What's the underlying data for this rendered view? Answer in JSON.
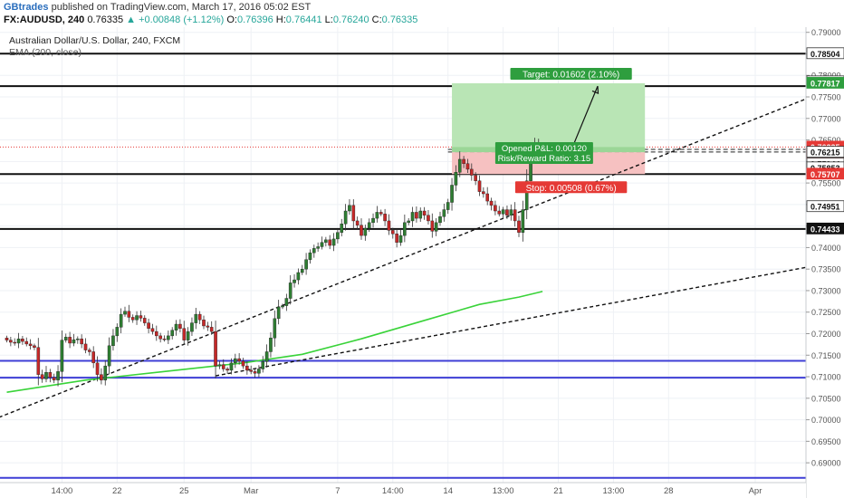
{
  "header": {
    "author": "GBtrades",
    "published_text": "published on TradingView.com, March 17, 2016 05:02 EST",
    "symbol": "FX:AUDUSD, 240",
    "last": "0.76335",
    "change": "+0.00848 (+1.12%)",
    "open_label": "O:",
    "open": "0.76396",
    "high_label": "H:",
    "high": "0.76441",
    "low_label": "L:",
    "low": "0.76240",
    "close_label": "C:",
    "close": "0.76335"
  },
  "legend": {
    "title": "Australian Dollar/U.S. Dollar, 240, FXCM",
    "indicator": "EMA (200, close)"
  },
  "colors": {
    "up_candle": "#2e7d32",
    "down_candle": "#c62828",
    "ema": "#39d339",
    "support_blue": "#3f3fd6",
    "target_fill": "#b9e5b5",
    "stop_fill": "#f6c1c1",
    "target_badge": "#2e9e3e",
    "stop_badge": "#e53935",
    "price_line": "#e53935"
  },
  "chart_data": {
    "type": "candlestick",
    "ylim": [
      0.6854,
      0.7912
    ],
    "y_ticks": [
      0.69,
      0.695,
      0.7,
      0.705,
      0.71,
      0.715,
      0.72,
      0.725,
      0.73,
      0.735,
      0.74,
      0.745,
      0.75,
      0.755,
      0.76,
      0.765,
      0.77,
      0.775,
      0.78,
      0.785,
      0.79
    ],
    "y_tick_labels": [
      "0.69000",
      "0.69500",
      "0.70000",
      "0.70500",
      "0.71000",
      "0.71500",
      "0.72000",
      "0.72500",
      "0.73000",
      "0.73500",
      "0.74000",
      "0.74500",
      "0.75000",
      "0.75500",
      "0.76000",
      "0.76500",
      "0.77000",
      "0.77500",
      "0.78000",
      "0.78500",
      "0.79000"
    ],
    "x_labels": [
      {
        "i": 14,
        "text": "14:00"
      },
      {
        "i": 28,
        "text": "22"
      },
      {
        "i": 45,
        "text": "25"
      },
      {
        "i": 62,
        "text": "Mar"
      },
      {
        "i": 84,
        "text": "7"
      },
      {
        "i": 98,
        "text": "14:00"
      },
      {
        "i": 112,
        "text": "14"
      },
      {
        "i": 126,
        "text": "13:00"
      },
      {
        "i": 140,
        "text": "21"
      },
      {
        "i": 154,
        "text": "13:00"
      },
      {
        "i": 168,
        "text": "28"
      },
      {
        "i": 190,
        "text": "Apr"
      }
    ],
    "closes": [
      0.7185,
      0.718,
      0.7178,
      0.7188,
      0.7182,
      0.7176,
      0.7172,
      0.7168,
      0.7105,
      0.7095,
      0.711,
      0.7098,
      0.7092,
      0.7112,
      0.7185,
      0.7192,
      0.7178,
      0.7186,
      0.7188,
      0.7176,
      0.7162,
      0.7158,
      0.7132,
      0.7105,
      0.7092,
      0.7125,
      0.7172,
      0.7195,
      0.7215,
      0.7245,
      0.7252,
      0.7238,
      0.7232,
      0.7242,
      0.7236,
      0.7225,
      0.7212,
      0.7205,
      0.7195,
      0.7188,
      0.7186,
      0.7195,
      0.7208,
      0.7222,
      0.7212,
      0.7185,
      0.7205,
      0.7225,
      0.7245,
      0.7232,
      0.7218,
      0.7215,
      0.7205,
      0.7125,
      0.7128,
      0.7118,
      0.7115,
      0.7132,
      0.7142,
      0.7136,
      0.7125,
      0.7115,
      0.7112,
      0.7108,
      0.7118,
      0.7135,
      0.7158,
      0.719,
      0.7235,
      0.7262,
      0.7265,
      0.7282,
      0.7318,
      0.7325,
      0.7342,
      0.735,
      0.7372,
      0.7388,
      0.7398,
      0.7402,
      0.7412,
      0.7418,
      0.7405,
      0.742,
      0.7435,
      0.7455,
      0.7485,
      0.7498,
      0.7462,
      0.7452,
      0.7428,
      0.7445,
      0.7458,
      0.7468,
      0.7482,
      0.7478,
      0.7462,
      0.744,
      0.7432,
      0.7412,
      0.7428,
      0.7458,
      0.7462,
      0.7482,
      0.7468,
      0.7485,
      0.7475,
      0.7462,
      0.7438,
      0.7458,
      0.7472,
      0.7488,
      0.7505,
      0.7545,
      0.7575,
      0.7605,
      0.7595,
      0.7582,
      0.7568,
      0.7555,
      0.753,
      0.7525,
      0.7508,
      0.7498,
      0.7485,
      0.7478,
      0.7488,
      0.7475,
      0.7488,
      0.7462,
      0.7435,
      0.7488,
      0.7555,
      0.7615,
      0.7642,
      0.76335
    ],
    "ema": [
      {
        "i": 0,
        "v": 0.7064
      },
      {
        "i": 20,
        "v": 0.7092
      },
      {
        "i": 40,
        "v": 0.7112
      },
      {
        "i": 60,
        "v": 0.7132
      },
      {
        "i": 75,
        "v": 0.7152
      },
      {
        "i": 90,
        "v": 0.7188
      },
      {
        "i": 105,
        "v": 0.7228
      },
      {
        "i": 120,
        "v": 0.7268
      },
      {
        "i": 130,
        "v": 0.7285
      },
      {
        "i": 136,
        "v": 0.7298
      }
    ],
    "horizontal_levels": [
      {
        "v": 0.78504,
        "color": "#111111",
        "width": 2
      },
      {
        "v": 0.7775,
        "color": "#111111",
        "width": 2
      },
      {
        "v": 0.75707,
        "color": "#111111",
        "width": 2
      },
      {
        "v": 0.74433,
        "color": "#111111",
        "width": 2
      },
      {
        "v": 0.7137,
        "color": "#3f3fd6",
        "width": 2
      },
      {
        "v": 0.70978,
        "color": "#3f3fd6",
        "width": 2
      },
      {
        "v": 0.6865,
        "color": "#3f3fd6",
        "width": 2
      }
    ],
    "trendlines": [
      {
        "from": {
          "i": -2,
          "v": 0.70056
        },
        "to": {
          "i": 205,
          "v": 0.7753
        },
        "dash": true
      },
      {
        "from": {
          "i": 53,
          "v": 0.7102
        },
        "to": {
          "i": 205,
          "v": 0.73575
        },
        "dash": true
      }
    ],
    "dashed_levels": [
      0.7628,
      0.7622
    ],
    "price_line": 0.76335,
    "position": {
      "start_i": 113,
      "end_i": 162,
      "entry": 0.76215,
      "target": 0.77817,
      "stop": 0.75707,
      "target_label": "Target: 0.01602 (2.10%)",
      "stop_label": "Stop: 0.00508 (0.67%)",
      "pnl_label": "Opened P&L: 0.00120",
      "rr_label": "Risk/Reward Ratio: 3.15",
      "arrow_from": {
        "i": 144,
        "v": 0.7642
      },
      "arrow_to": {
        "i": 150,
        "v": 0.7775
      }
    },
    "axis_badges": [
      {
        "text": "0.78504",
        "v": 0.78504,
        "style": "white"
      },
      {
        "text": "0.77851",
        "v": 0.77851,
        "style": "white"
      },
      {
        "text": "0.77817",
        "v": 0.77817,
        "style": "green"
      },
      {
        "text": "0.76335",
        "v": 0.76335,
        "style": "red"
      },
      {
        "text": "2:57:20",
        "v": 0.7618,
        "style": "red"
      },
      {
        "text": "0.76215",
        "v": 0.76215,
        "style": "white"
      },
      {
        "text": "0.75944",
        "v": 0.75944,
        "style": "white"
      },
      {
        "text": "0.75853",
        "v": 0.75853,
        "style": "white"
      },
      {
        "text": "0.75707",
        "v": 0.75707,
        "style": "red"
      },
      {
        "text": "0.74951",
        "v": 0.74951,
        "style": "white"
      },
      {
        "text": "0.74433",
        "v": 0.74433,
        "style": "dark"
      }
    ]
  }
}
